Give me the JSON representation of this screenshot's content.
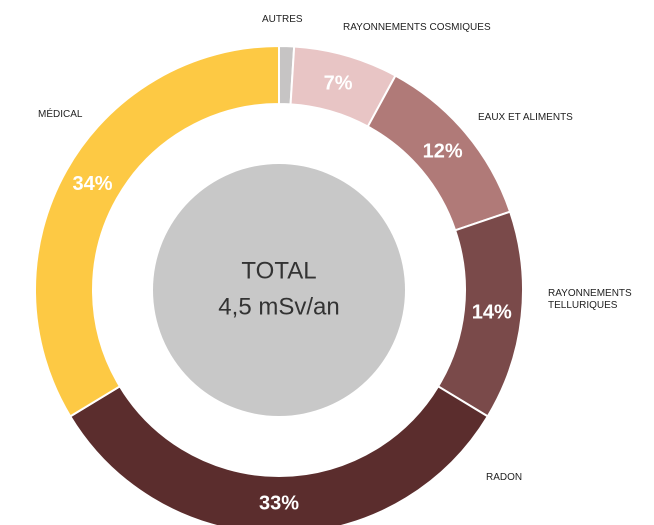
{
  "chart_data": {
    "type": "donut",
    "categories": [
      "AUTRES",
      "RAYONNEMENTS COSMIQUES",
      "EAUX ET ALIMENTS",
      "RAYONNEMENTS TELLURIQUES",
      "RADON",
      "MÉDICAL"
    ],
    "values": [
      1,
      7,
      12,
      14,
      33,
      34
    ],
    "value_labels": [
      null,
      "7%",
      "12%",
      "14%",
      "33%",
      "34%"
    ],
    "colors": [
      "#c6c4c4",
      "#e8c5c5",
      "#b07a78",
      "#7a4a4a",
      "#5b2d2d",
      "#fdc944"
    ],
    "center_text": [
      "TOTAL",
      "4,5 mSv/an"
    ]
  }
}
